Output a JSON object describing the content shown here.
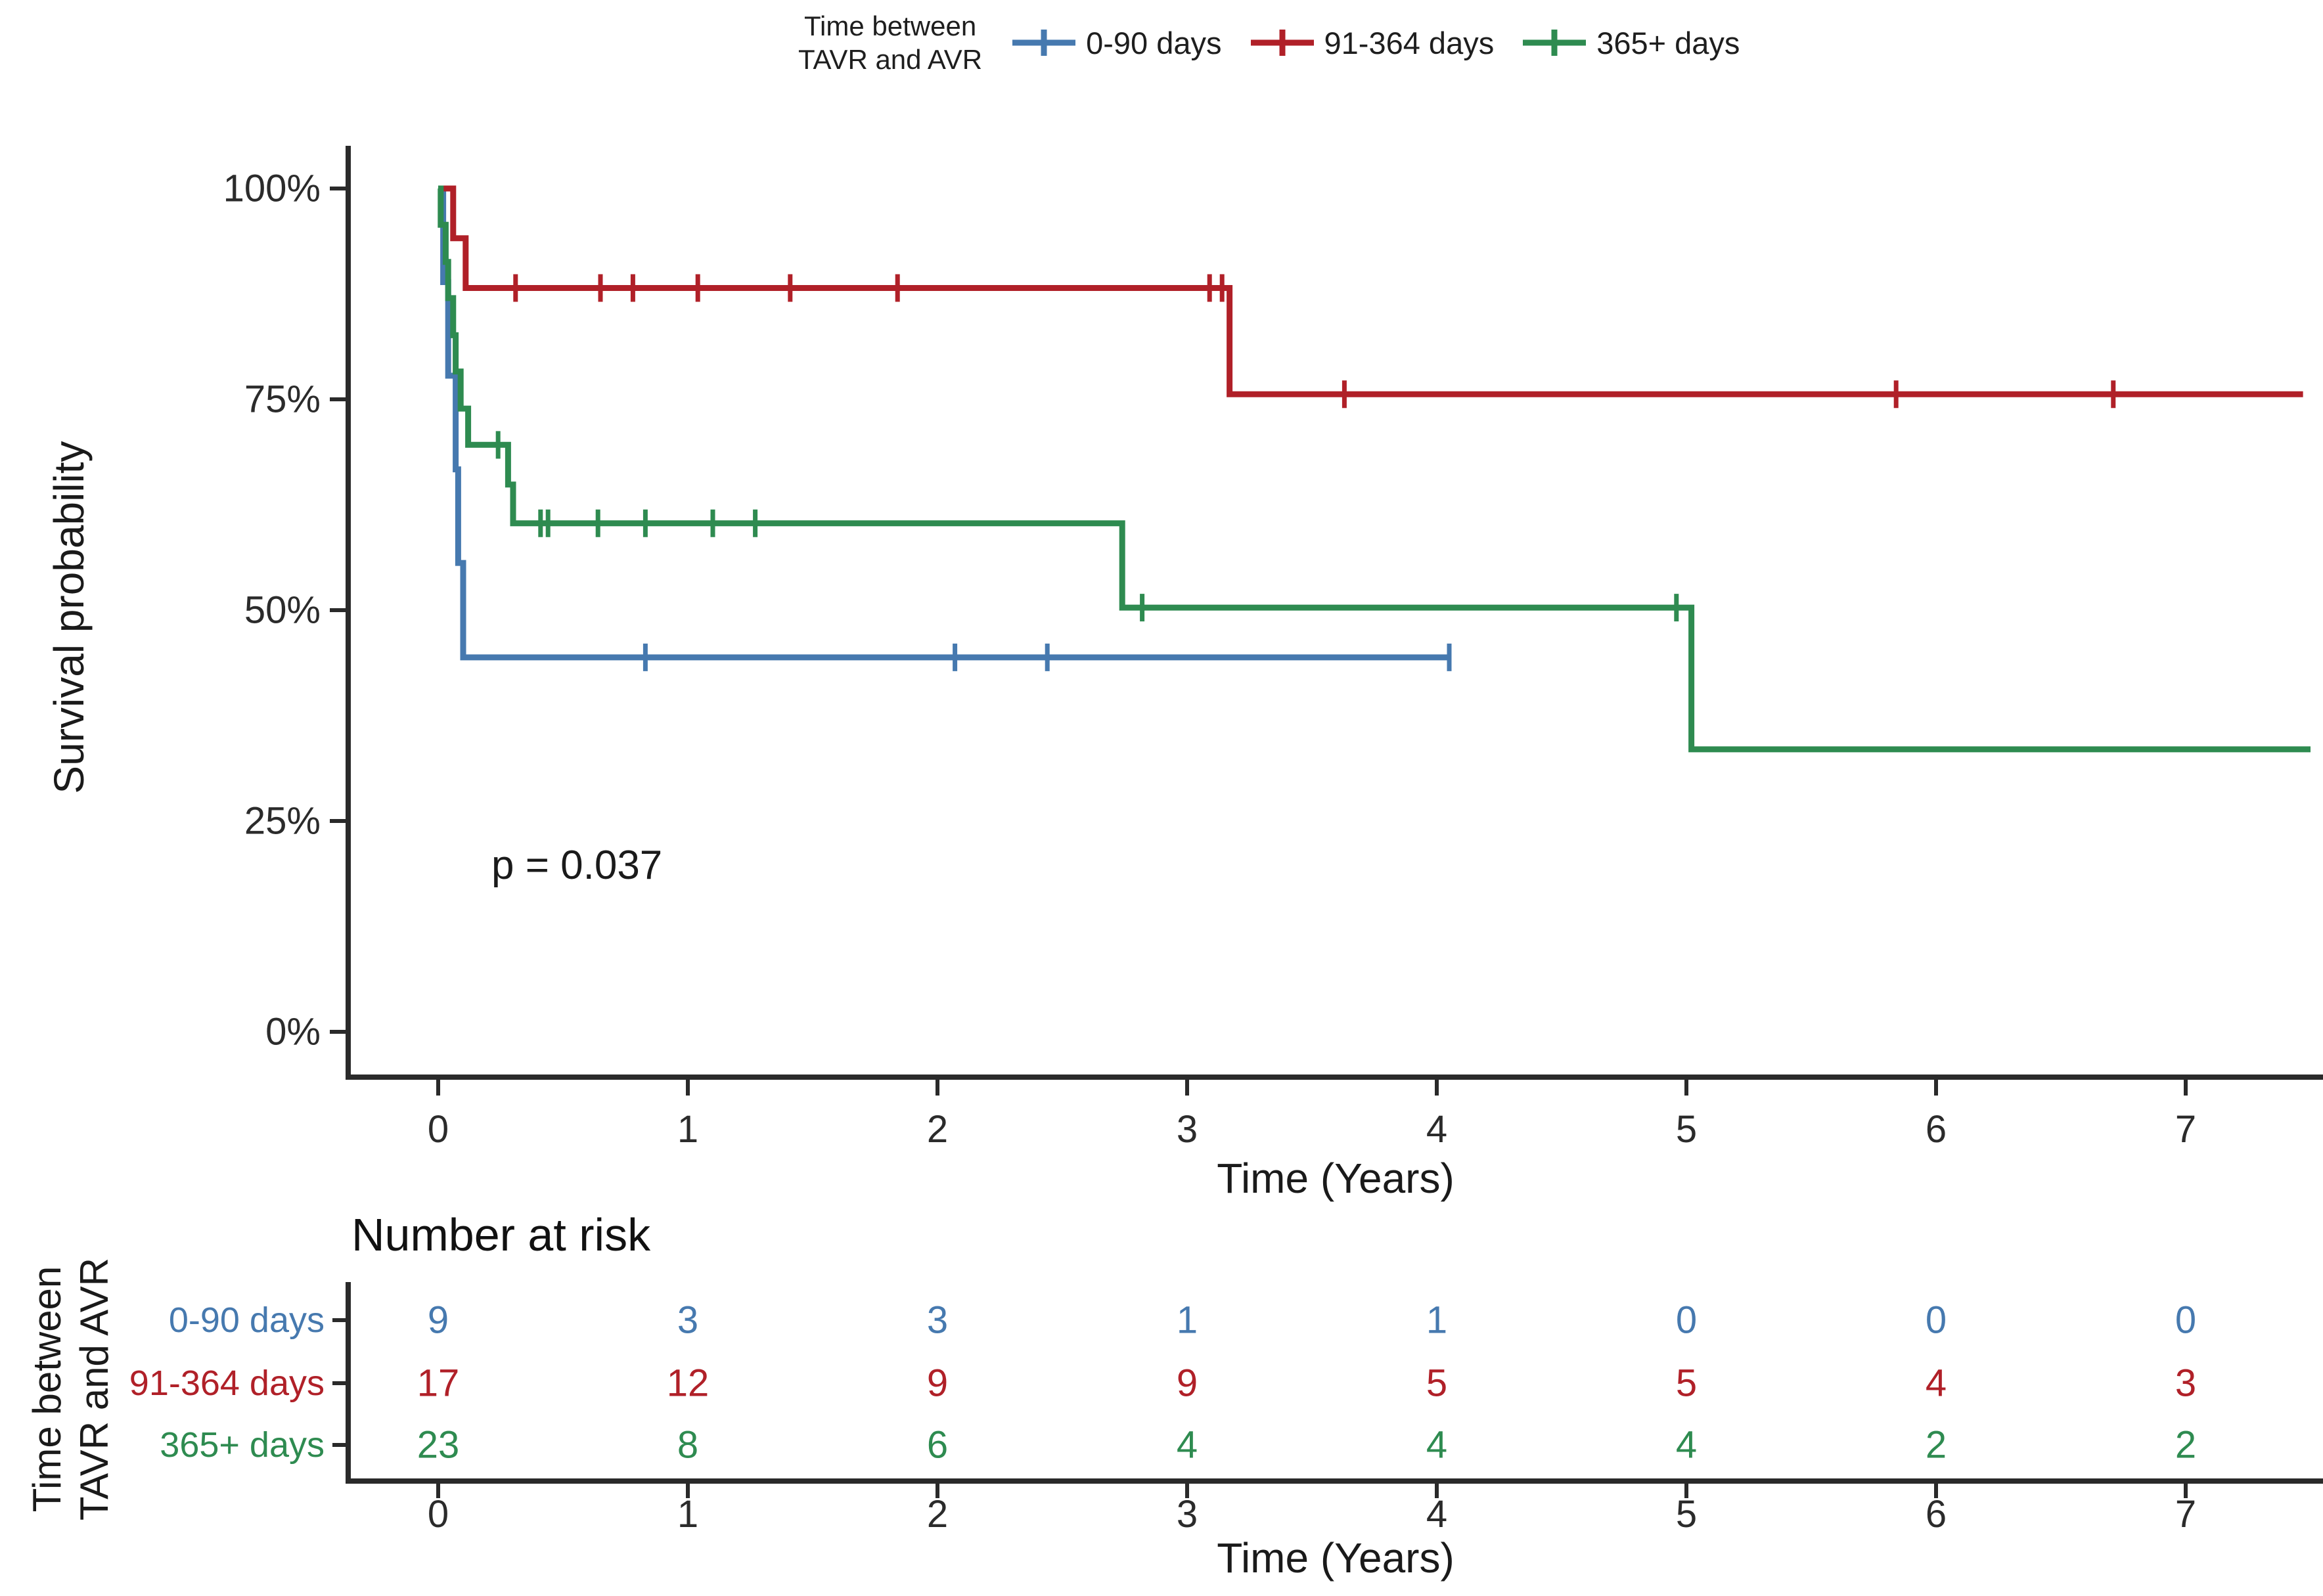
{
  "colors": {
    "blue": "#4679af",
    "red": "#b02028",
    "green": "#2e8b50",
    "axis": "#2a2a2a",
    "text": "#1e1e1e"
  },
  "legend": {
    "title_lines": [
      "Time between",
      "TAVR and AVR"
    ],
    "items": [
      {
        "label": "0-90 days",
        "color_key": "blue"
      },
      {
        "label": "91-364 days",
        "color_key": "red"
      },
      {
        "label": "365+ days",
        "color_key": "green"
      }
    ]
  },
  "main_plot": {
    "y_axis_label": "Survival probability",
    "x_axis_label": "Time (Years)",
    "annotation": "p = 0.037",
    "y_ticks": [
      {
        "label": "100%",
        "value": 100
      },
      {
        "label": "75%",
        "value": 75
      },
      {
        "label": "50%",
        "value": 50
      },
      {
        "label": "25%",
        "value": 25
      },
      {
        "label": "0%",
        "value": 0
      }
    ],
    "x_ticks": [
      {
        "label": "0",
        "value": 0
      },
      {
        "label": "1",
        "value": 1
      },
      {
        "label": "2",
        "value": 2
      },
      {
        "label": "3",
        "value": 3
      },
      {
        "label": "4",
        "value": 4
      },
      {
        "label": "5",
        "value": 5
      },
      {
        "label": "6",
        "value": 6
      },
      {
        "label": "7",
        "value": 7
      }
    ]
  },
  "chart_data": {
    "type": "line",
    "subtype": "kaplan-meier-step-curves",
    "title": "",
    "xlabel": "Time (Years)",
    "ylabel": "Survival probability",
    "xlim": [
      -0.36,
      7.55
    ],
    "ylim": [
      0,
      100
    ],
    "grid": "off",
    "legend_position": "top",
    "legend_title": "Time between TAVR and AVR",
    "p_value_annotation": "p = 0.037",
    "series": [
      {
        "name": "0-90 days",
        "color_key": "blue",
        "steps": [
          [
            0,
            100
          ],
          [
            0.02,
            100
          ],
          [
            0.02,
            88.9
          ],
          [
            0.04,
            88.9
          ],
          [
            0.04,
            77.8
          ],
          [
            0.07,
            77.8
          ],
          [
            0.07,
            66.7
          ],
          [
            0.08,
            66.7
          ],
          [
            0.08,
            55.6
          ],
          [
            0.1,
            55.6
          ],
          [
            0.1,
            44.4
          ],
          [
            4.05,
            44.4
          ]
        ],
        "censor_marks": [
          [
            0.83,
            44.4
          ],
          [
            2.07,
            44.4
          ],
          [
            2.44,
            44.4
          ],
          [
            4.05,
            44.4
          ]
        ]
      },
      {
        "name": "91-364 days",
        "color_key": "red",
        "steps": [
          [
            0,
            100
          ],
          [
            0.06,
            100
          ],
          [
            0.06,
            94.1
          ],
          [
            0.11,
            94.1
          ],
          [
            0.11,
            88.2
          ],
          [
            3.17,
            88.2
          ],
          [
            3.17,
            75.6
          ],
          [
            7.47,
            75.6
          ]
        ],
        "censor_marks": [
          [
            0.31,
            88.2
          ],
          [
            0.65,
            88.2
          ],
          [
            0.78,
            88.2
          ],
          [
            1.04,
            88.2
          ],
          [
            1.41,
            88.2
          ],
          [
            1.84,
            88.2
          ],
          [
            3.09,
            88.2
          ],
          [
            3.14,
            88.2
          ],
          [
            3.63,
            75.6
          ],
          [
            5.84,
            75.6
          ],
          [
            6.71,
            75.6
          ]
        ]
      },
      {
        "name": "365+ days",
        "color_key": "green",
        "steps": [
          [
            0,
            100
          ],
          [
            0.01,
            100
          ],
          [
            0.01,
            95.7
          ],
          [
            0.03,
            95.7
          ],
          [
            0.03,
            91.3
          ],
          [
            0.04,
            91.3
          ],
          [
            0.04,
            87.0
          ],
          [
            0.06,
            87.0
          ],
          [
            0.06,
            82.6
          ],
          [
            0.07,
            82.6
          ],
          [
            0.07,
            78.3
          ],
          [
            0.09,
            78.3
          ],
          [
            0.09,
            73.9
          ],
          [
            0.12,
            73.9
          ],
          [
            0.12,
            69.6
          ],
          [
            0.28,
            69.6
          ],
          [
            0.28,
            64.9
          ],
          [
            0.3,
            64.9
          ],
          [
            0.3,
            60.3
          ],
          [
            2.74,
            60.3
          ],
          [
            2.74,
            50.3
          ],
          [
            5.02,
            50.3
          ],
          [
            5.02,
            33.5
          ],
          [
            7.5,
            33.5
          ]
        ],
        "censor_marks": [
          [
            0.24,
            69.6
          ],
          [
            0.41,
            60.3
          ],
          [
            0.44,
            60.3
          ],
          [
            0.64,
            60.3
          ],
          [
            0.83,
            60.3
          ],
          [
            1.1,
            60.3
          ],
          [
            1.27,
            60.3
          ],
          [
            2.82,
            50.3
          ],
          [
            4.96,
            50.3
          ]
        ]
      }
    ],
    "risk_table": {
      "title": "Number at risk",
      "times": [
        0,
        1,
        2,
        3,
        4,
        5,
        6,
        7
      ],
      "rows": [
        {
          "label": "0-90 days",
          "color_key": "blue",
          "values": [
            9,
            3,
            3,
            1,
            1,
            0,
            0,
            0
          ]
        },
        {
          "label": "91-364 days",
          "color_key": "red",
          "values": [
            17,
            12,
            9,
            9,
            5,
            5,
            4,
            3
          ]
        },
        {
          "label": "365+ days",
          "color_key": "green",
          "values": [
            23,
            8,
            6,
            4,
            4,
            4,
            2,
            2
          ]
        }
      ]
    }
  },
  "risk_table": {
    "title": "Number at risk",
    "axis_label_lines": [
      "Time between",
      "TAVR and AVR"
    ],
    "x_axis_label": "Time (Years)",
    "x_ticks": [
      "0",
      "1",
      "2",
      "3",
      "4",
      "5",
      "6",
      "7"
    ]
  }
}
